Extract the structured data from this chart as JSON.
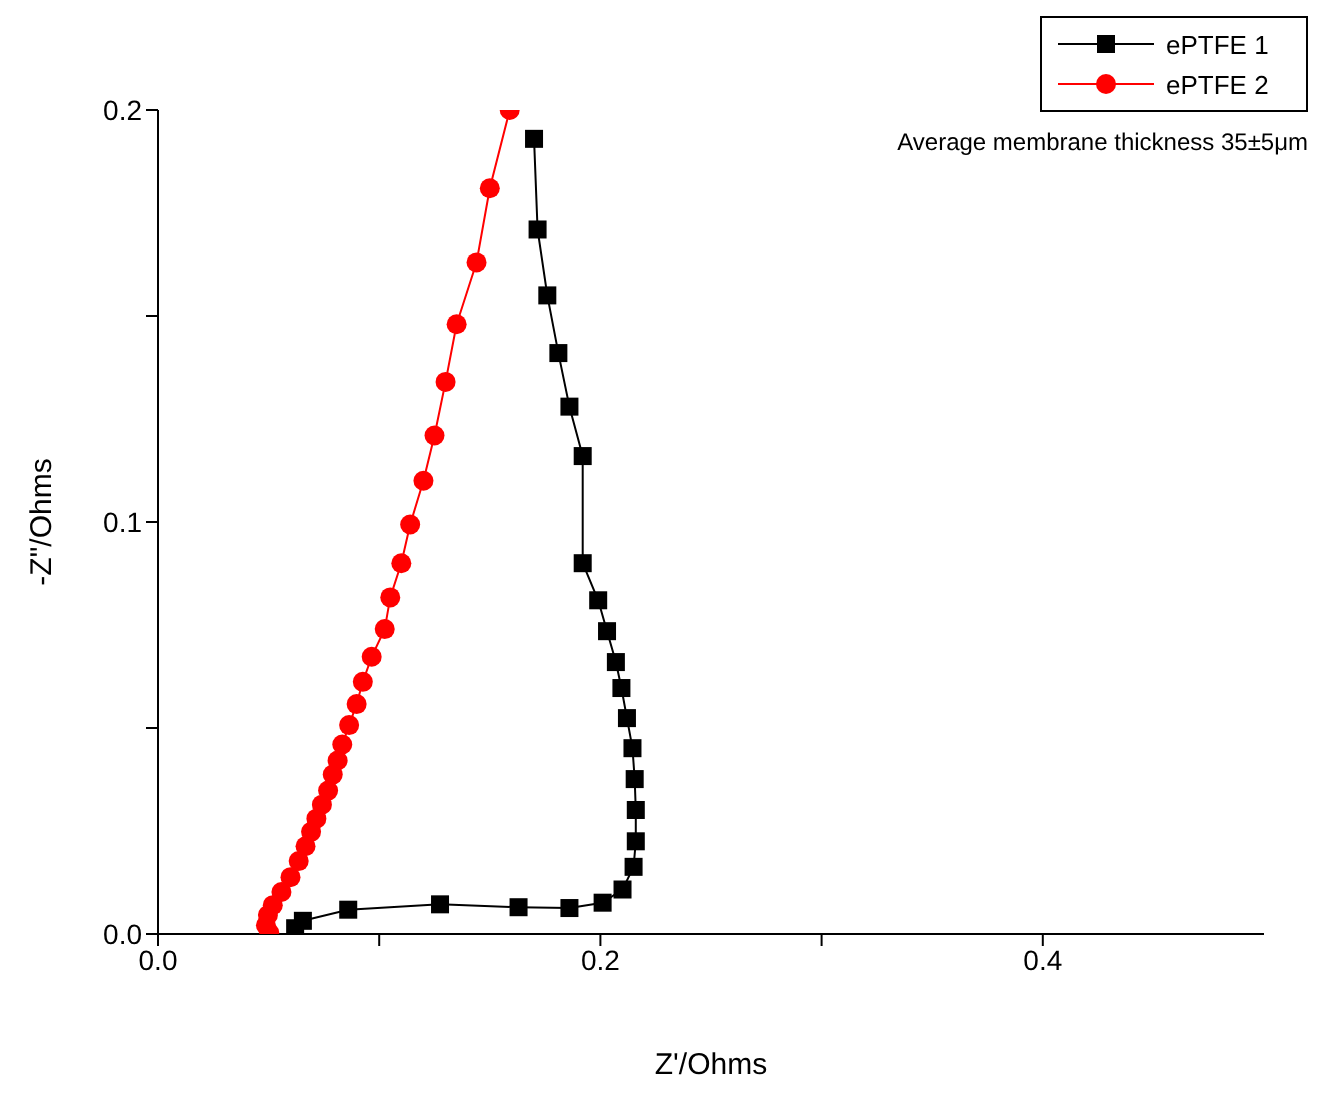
{
  "chart_data": {
    "type": "line",
    "xlabel": "Z'/Ohms",
    "ylabel": "-Z\"/Ohms",
    "xlim": [
      0,
      0.5
    ],
    "xticks": [
      {
        "value": 0,
        "label": "0.0"
      },
      {
        "value": 0.1,
        "label": null
      },
      0.2,
      {
        "value": 0.3,
        "label": null
      },
      0.4
    ],
    "ylim": [
      0,
      0.2
    ],
    "yticks": [
      {
        "value": 0,
        "label": "0.0"
      },
      {
        "value": 0.05,
        "label": null
      },
      0.1,
      {
        "value": 0.15,
        "label": null
      },
      0.2
    ],
    "grid": false,
    "legend": "top right",
    "line_style": "solid",
    "annotations": [
      "Average membrane thickness 35±5μm"
    ],
    "series": [
      {
        "name": "ePTFE 1",
        "color": "#000000",
        "marker": "square",
        "x": [
          0.062,
          0.0655,
          0.086,
          0.1275,
          0.163,
          0.186,
          0.201,
          0.21,
          0.215,
          0.216,
          0.216,
          0.2155,
          0.2145,
          0.212,
          0.2095,
          0.207,
          0.203,
          0.199,
          0.192,
          0.192,
          0.186,
          0.181,
          0.176,
          0.1716,
          0.17
        ],
        "values": [
          0.0014,
          0.0032,
          0.0059,
          0.0072,
          0.0065,
          0.0063,
          0.0076,
          0.0108,
          0.0163,
          0.0225,
          0.0301,
          0.0376,
          0.0451,
          0.0524,
          0.0597,
          0.066,
          0.0735,
          0.081,
          0.09,
          0.116,
          0.128,
          0.141,
          0.155,
          0.171,
          0.193
        ]
      },
      {
        "name": "ePTFE 2",
        "color": "#ff0000",
        "marker": "circle",
        "x": [
          0.0503,
          0.0488,
          0.0497,
          0.0519,
          0.0558,
          0.0599,
          0.0636,
          0.0667,
          0.0692,
          0.0716,
          0.0741,
          0.0769,
          0.079,
          0.0812,
          0.0833,
          0.0864,
          0.0898,
          0.0926,
          0.0966,
          0.1025,
          0.105,
          0.11,
          0.114,
          0.12,
          0.125,
          0.13,
          0.135,
          0.144,
          0.15,
          0.159
        ],
        "values": [
          0.0003,
          0.0021,
          0.0046,
          0.007,
          0.0102,
          0.0138,
          0.0177,
          0.0213,
          0.0248,
          0.028,
          0.0314,
          0.0348,
          0.0387,
          0.0421,
          0.046,
          0.0507,
          0.0558,
          0.0612,
          0.0673,
          0.074,
          0.0817,
          0.09,
          0.0994,
          0.11,
          0.121,
          0.134,
          0.148,
          0.163,
          0.181,
          0.2
        ]
      }
    ]
  }
}
